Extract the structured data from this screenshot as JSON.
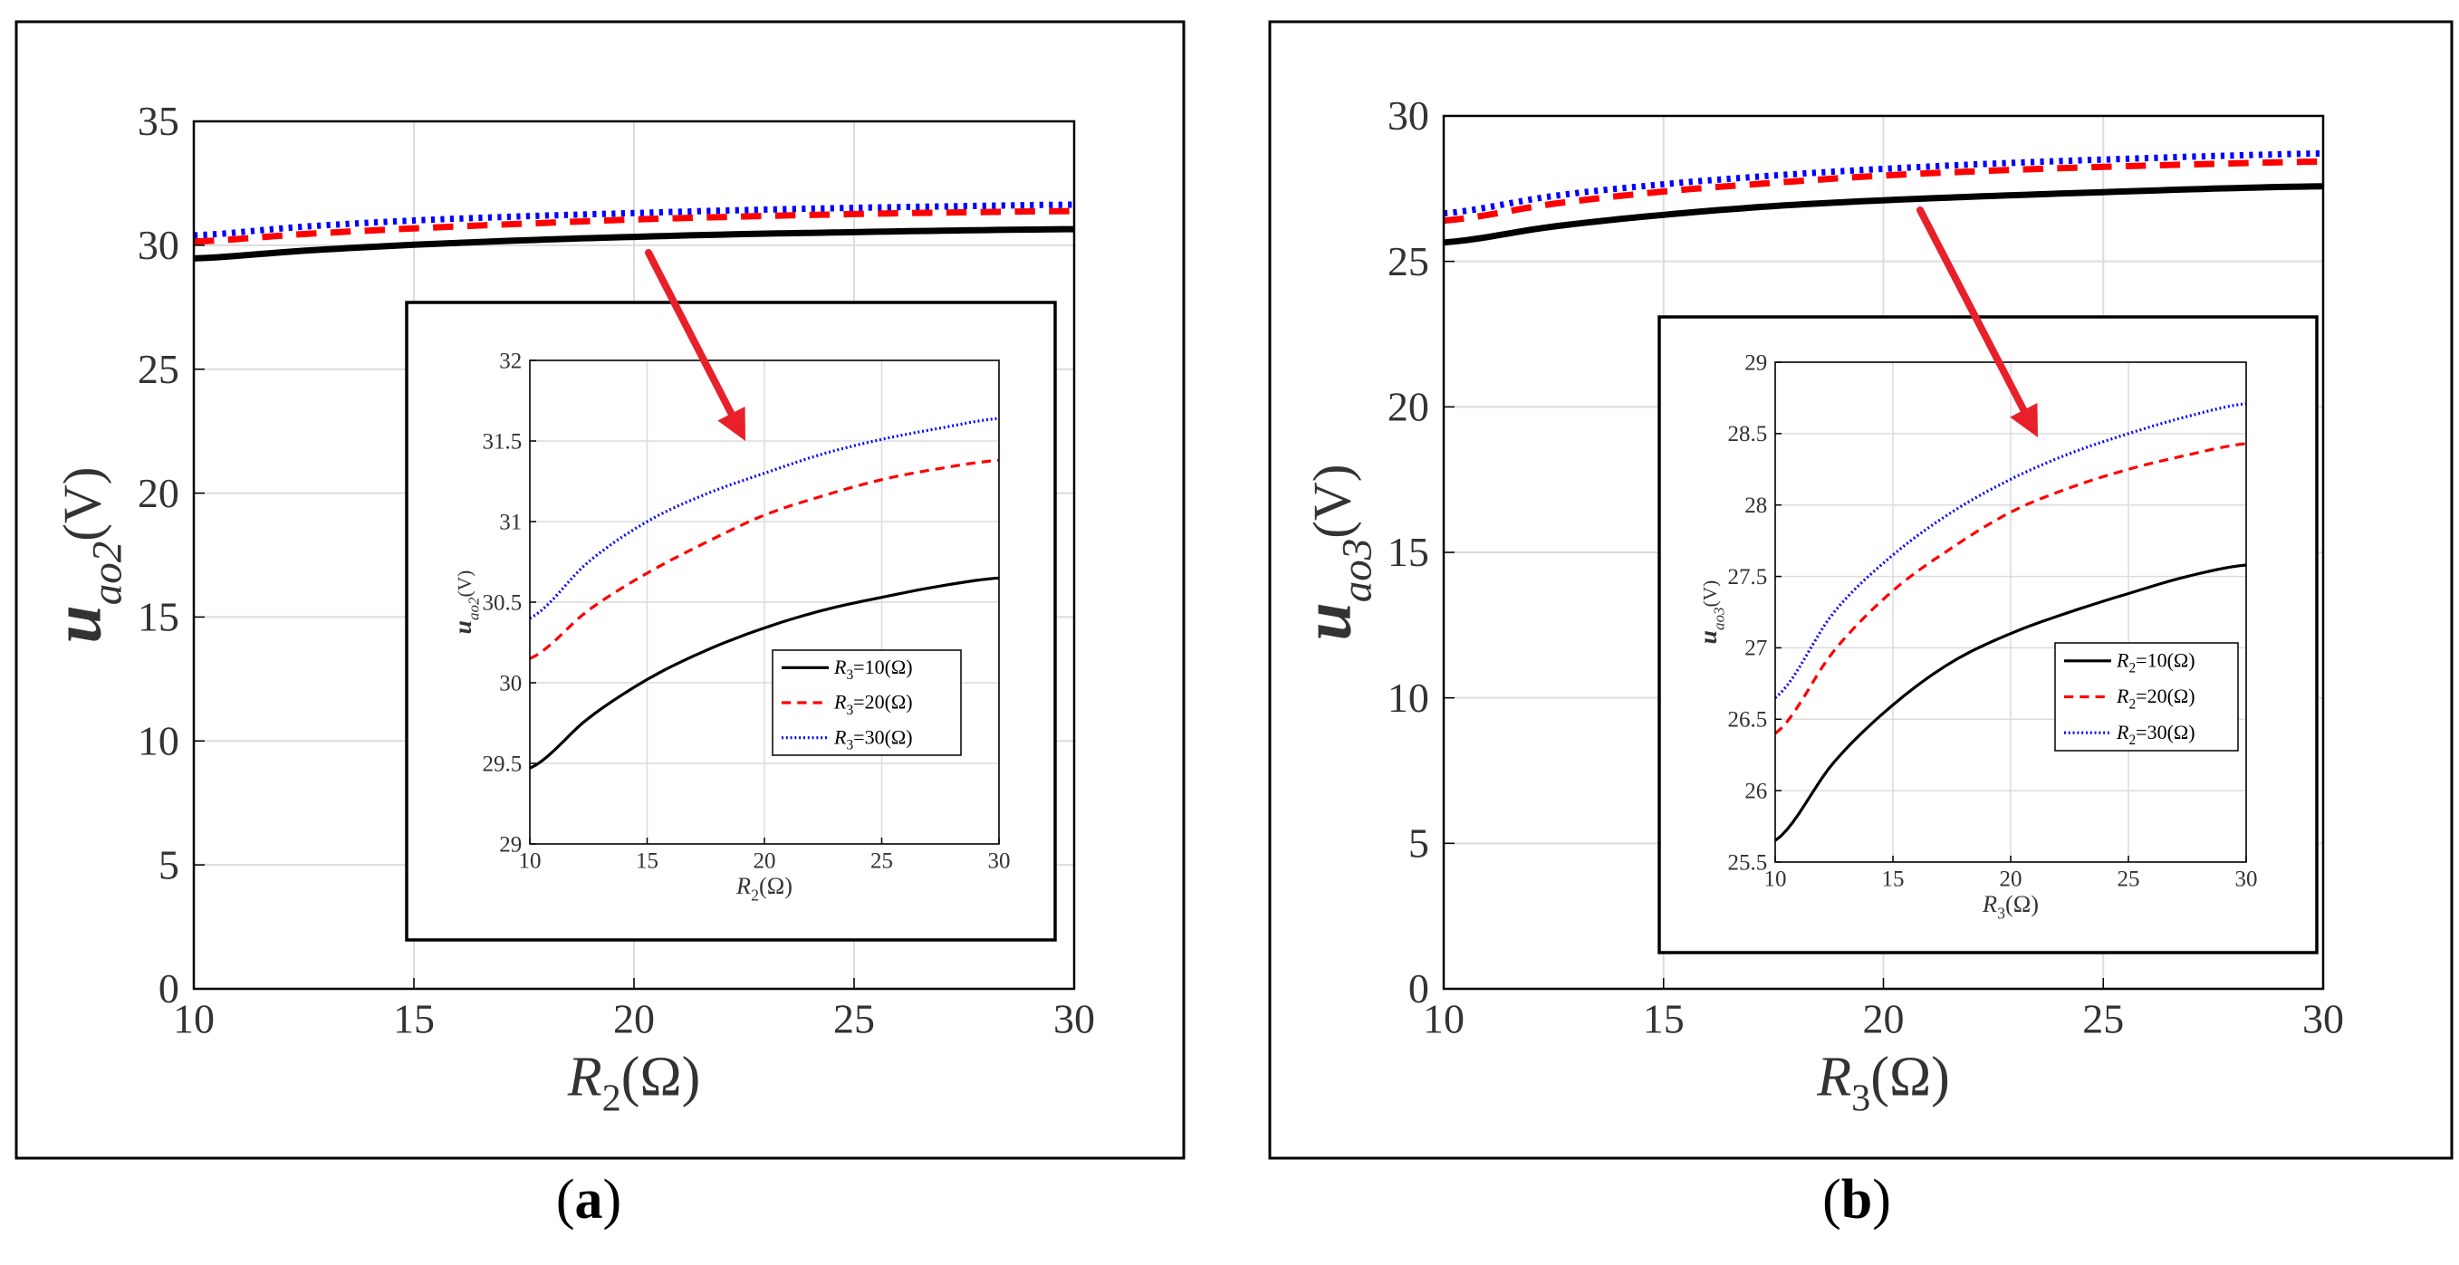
{
  "colors": {
    "r10": "#000000",
    "r20": "#ff0000",
    "r30": "#0000ff",
    "arrow": "#e8202a",
    "grid": "#dcdcdc",
    "frame": "#000000"
  },
  "panels": [
    {
      "caption_open": "(",
      "caption_letter": "a",
      "caption_close": ")",
      "xlabel_sym": "R",
      "xlabel_sub": "2",
      "xlabel_unit": "(Ω)",
      "ylabel_sym": "u",
      "ylabel_sub": "ao2",
      "ylabel_unit": "(V)",
      "legend_sym": "R",
      "legend_sub": "3"
    },
    {
      "caption_open": "(",
      "caption_letter": "b",
      "caption_close": ")",
      "xlabel_sym": "R",
      "xlabel_sub": "3",
      "xlabel_unit": "(Ω)",
      "ylabel_sym": "u",
      "ylabel_sub": "ao3",
      "ylabel_unit": "(V)",
      "legend_sym": "R",
      "legend_sub": "2"
    }
  ],
  "chart_data": [
    {
      "panel": "a",
      "type": "line",
      "role": "main",
      "xlabel": "R2(Ω)",
      "ylabel": "uao2(V)",
      "xlim": [
        10,
        30
      ],
      "ylim": [
        0,
        35
      ],
      "xticks": [
        10,
        15,
        20,
        25,
        30
      ],
      "yticks": [
        0,
        5,
        10,
        15,
        20,
        25,
        30,
        35
      ],
      "ytick_labels": [
        "0",
        "5",
        "10",
        "15",
        "20",
        "25",
        "30",
        "35"
      ],
      "grid": true,
      "x": [
        10,
        12.5,
        15,
        17.5,
        20,
        22.5,
        25,
        27.5,
        30
      ],
      "series": [
        {
          "name": "R3=10(Ω)",
          "style": "solid",
          "values": [
            29.47,
            29.78,
            30.02,
            30.2,
            30.34,
            30.45,
            30.53,
            30.6,
            30.65
          ]
        },
        {
          "name": "R3=20(Ω)",
          "style": "dashed",
          "values": [
            30.15,
            30.45,
            30.68,
            30.87,
            31.04,
            31.16,
            31.26,
            31.33,
            31.38
          ]
        },
        {
          "name": "R3=30(Ω)",
          "style": "dotted",
          "values": [
            30.4,
            30.75,
            31.0,
            31.17,
            31.3,
            31.42,
            31.51,
            31.58,
            31.64
          ]
        }
      ]
    },
    {
      "panel": "a",
      "type": "line",
      "role": "inset",
      "xlabel": "R2(Ω)",
      "ylabel": "uao2(V)",
      "xlim": [
        10,
        30
      ],
      "ylim": [
        29,
        32
      ],
      "xticks": [
        10,
        15,
        20,
        25,
        30
      ],
      "yticks": [
        29,
        29.5,
        30,
        30.5,
        31,
        31.5,
        32
      ],
      "ytick_labels": [
        "29",
        "29.5",
        "30",
        "30.5",
        "31",
        "31.5",
        "32"
      ],
      "grid": true,
      "legend": "lower-right",
      "x": [
        10,
        12.5,
        15,
        17.5,
        20,
        22.5,
        25,
        27.5,
        30
      ],
      "series": [
        {
          "name": "R3=10(Ω)",
          "style": "solid",
          "values": [
            29.47,
            29.78,
            30.02,
            30.2,
            30.34,
            30.45,
            30.53,
            30.6,
            30.65
          ]
        },
        {
          "name": "R3=20(Ω)",
          "style": "dashed",
          "values": [
            30.15,
            30.45,
            30.68,
            30.87,
            31.04,
            31.16,
            31.26,
            31.33,
            31.38
          ]
        },
        {
          "name": "R3=30(Ω)",
          "style": "dotted",
          "values": [
            30.4,
            30.75,
            31.0,
            31.17,
            31.3,
            31.42,
            31.51,
            31.58,
            31.64
          ]
        }
      ]
    },
    {
      "panel": "b",
      "type": "line",
      "role": "main",
      "xlabel": "R3(Ω)",
      "ylabel": "uao3(V)",
      "xlim": [
        10,
        30
      ],
      "ylim": [
        0,
        30
      ],
      "xticks": [
        10,
        15,
        20,
        25,
        30
      ],
      "yticks": [
        0,
        5,
        10,
        15,
        20,
        25,
        30
      ],
      "ytick_labels": [
        "0",
        "5",
        "10",
        "15",
        "20",
        "25",
        "30"
      ],
      "grid": true,
      "x": [
        10,
        12.5,
        15,
        17.5,
        20,
        22.5,
        25,
        27.5,
        30
      ],
      "series": [
        {
          "name": "R2=10(Ω)",
          "style": "solid",
          "values": [
            25.65,
            26.2,
            26.6,
            26.9,
            27.1,
            27.25,
            27.38,
            27.5,
            27.58
          ]
        },
        {
          "name": "R2=20(Ω)",
          "style": "dashed",
          "values": [
            26.4,
            26.98,
            27.4,
            27.7,
            27.95,
            28.12,
            28.25,
            28.35,
            28.43
          ]
        },
        {
          "name": "R2=30(Ω)",
          "style": "dotted",
          "values": [
            26.65,
            27.25,
            27.65,
            27.95,
            28.18,
            28.36,
            28.5,
            28.62,
            28.71
          ]
        }
      ]
    },
    {
      "panel": "b",
      "type": "line",
      "role": "inset",
      "xlabel": "R3(Ω)",
      "ylabel": "uao3(V)",
      "xlim": [
        10,
        30
      ],
      "ylim": [
        25.5,
        29
      ],
      "xticks": [
        10,
        15,
        20,
        25,
        30
      ],
      "yticks": [
        25.5,
        26,
        26.5,
        27,
        27.5,
        28,
        28.5,
        29
      ],
      "ytick_labels": [
        "25.5",
        "26",
        "26.5",
        "27",
        "27.5",
        "28",
        "28.5",
        "29"
      ],
      "grid": true,
      "legend": "lower-right",
      "x": [
        10,
        12.5,
        15,
        17.5,
        20,
        22.5,
        25,
        27.5,
        30
      ],
      "series": [
        {
          "name": "R2=10(Ω)",
          "style": "solid",
          "values": [
            25.65,
            26.2,
            26.6,
            26.9,
            27.1,
            27.25,
            27.38,
            27.5,
            27.58
          ]
        },
        {
          "name": "R2=20(Ω)",
          "style": "dashed",
          "values": [
            26.4,
            26.98,
            27.4,
            27.7,
            27.95,
            28.12,
            28.25,
            28.35,
            28.43
          ]
        },
        {
          "name": "R2=30(Ω)",
          "style": "dotted",
          "values": [
            26.65,
            27.25,
            27.65,
            27.95,
            28.18,
            28.36,
            28.5,
            28.62,
            28.71
          ]
        }
      ]
    }
  ]
}
